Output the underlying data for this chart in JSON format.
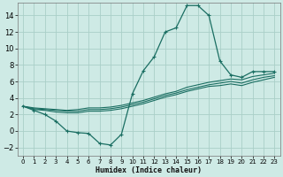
{
  "xlabel": "Humidex (Indice chaleur)",
  "background_color": "#ceeae5",
  "grid_color": "#aacfc8",
  "line_color": "#1a6e62",
  "xlim": [
    -0.5,
    23.5
  ],
  "ylim": [
    -3.0,
    15.5
  ],
  "xticks": [
    0,
    1,
    2,
    3,
    4,
    5,
    6,
    7,
    8,
    9,
    10,
    11,
    12,
    13,
    14,
    15,
    16,
    17,
    18,
    19,
    20,
    21,
    22,
    23
  ],
  "yticks": [
    -2,
    0,
    2,
    4,
    6,
    8,
    10,
    12,
    14
  ],
  "series": [
    [
      3.0,
      2.5,
      2.0,
      1.2,
      0.0,
      -0.2,
      -0.3,
      -1.5,
      -1.7,
      -0.4,
      4.5,
      7.3,
      9.0,
      12.0,
      12.5,
      15.2,
      15.2,
      14.0,
      8.5,
      6.8,
      6.5,
      7.2,
      7.2,
      7.2
    ],
    [
      3.0,
      2.8,
      2.7,
      2.6,
      2.5,
      2.6,
      2.8,
      2.8,
      2.9,
      3.1,
      3.4,
      3.7,
      4.1,
      4.5,
      4.8,
      5.3,
      5.6,
      5.9,
      6.1,
      6.3,
      6.2,
      6.6,
      6.8,
      7.0
    ],
    [
      3.0,
      2.7,
      2.6,
      2.5,
      2.4,
      2.4,
      2.6,
      2.6,
      2.7,
      2.9,
      3.2,
      3.5,
      3.9,
      4.3,
      4.6,
      5.0,
      5.3,
      5.6,
      5.8,
      6.0,
      5.8,
      6.2,
      6.5,
      6.7
    ],
    [
      3.0,
      2.6,
      2.5,
      2.3,
      2.2,
      2.2,
      2.4,
      2.4,
      2.5,
      2.7,
      3.0,
      3.3,
      3.7,
      4.1,
      4.4,
      4.8,
      5.1,
      5.4,
      5.5,
      5.7,
      5.5,
      5.9,
      6.2,
      6.5
    ]
  ],
  "has_markers": [
    true,
    false,
    false,
    false
  ],
  "xlabel_fontsize": 6.0,
  "tick_fontsize_x": 5.0,
  "tick_fontsize_y": 6.0
}
